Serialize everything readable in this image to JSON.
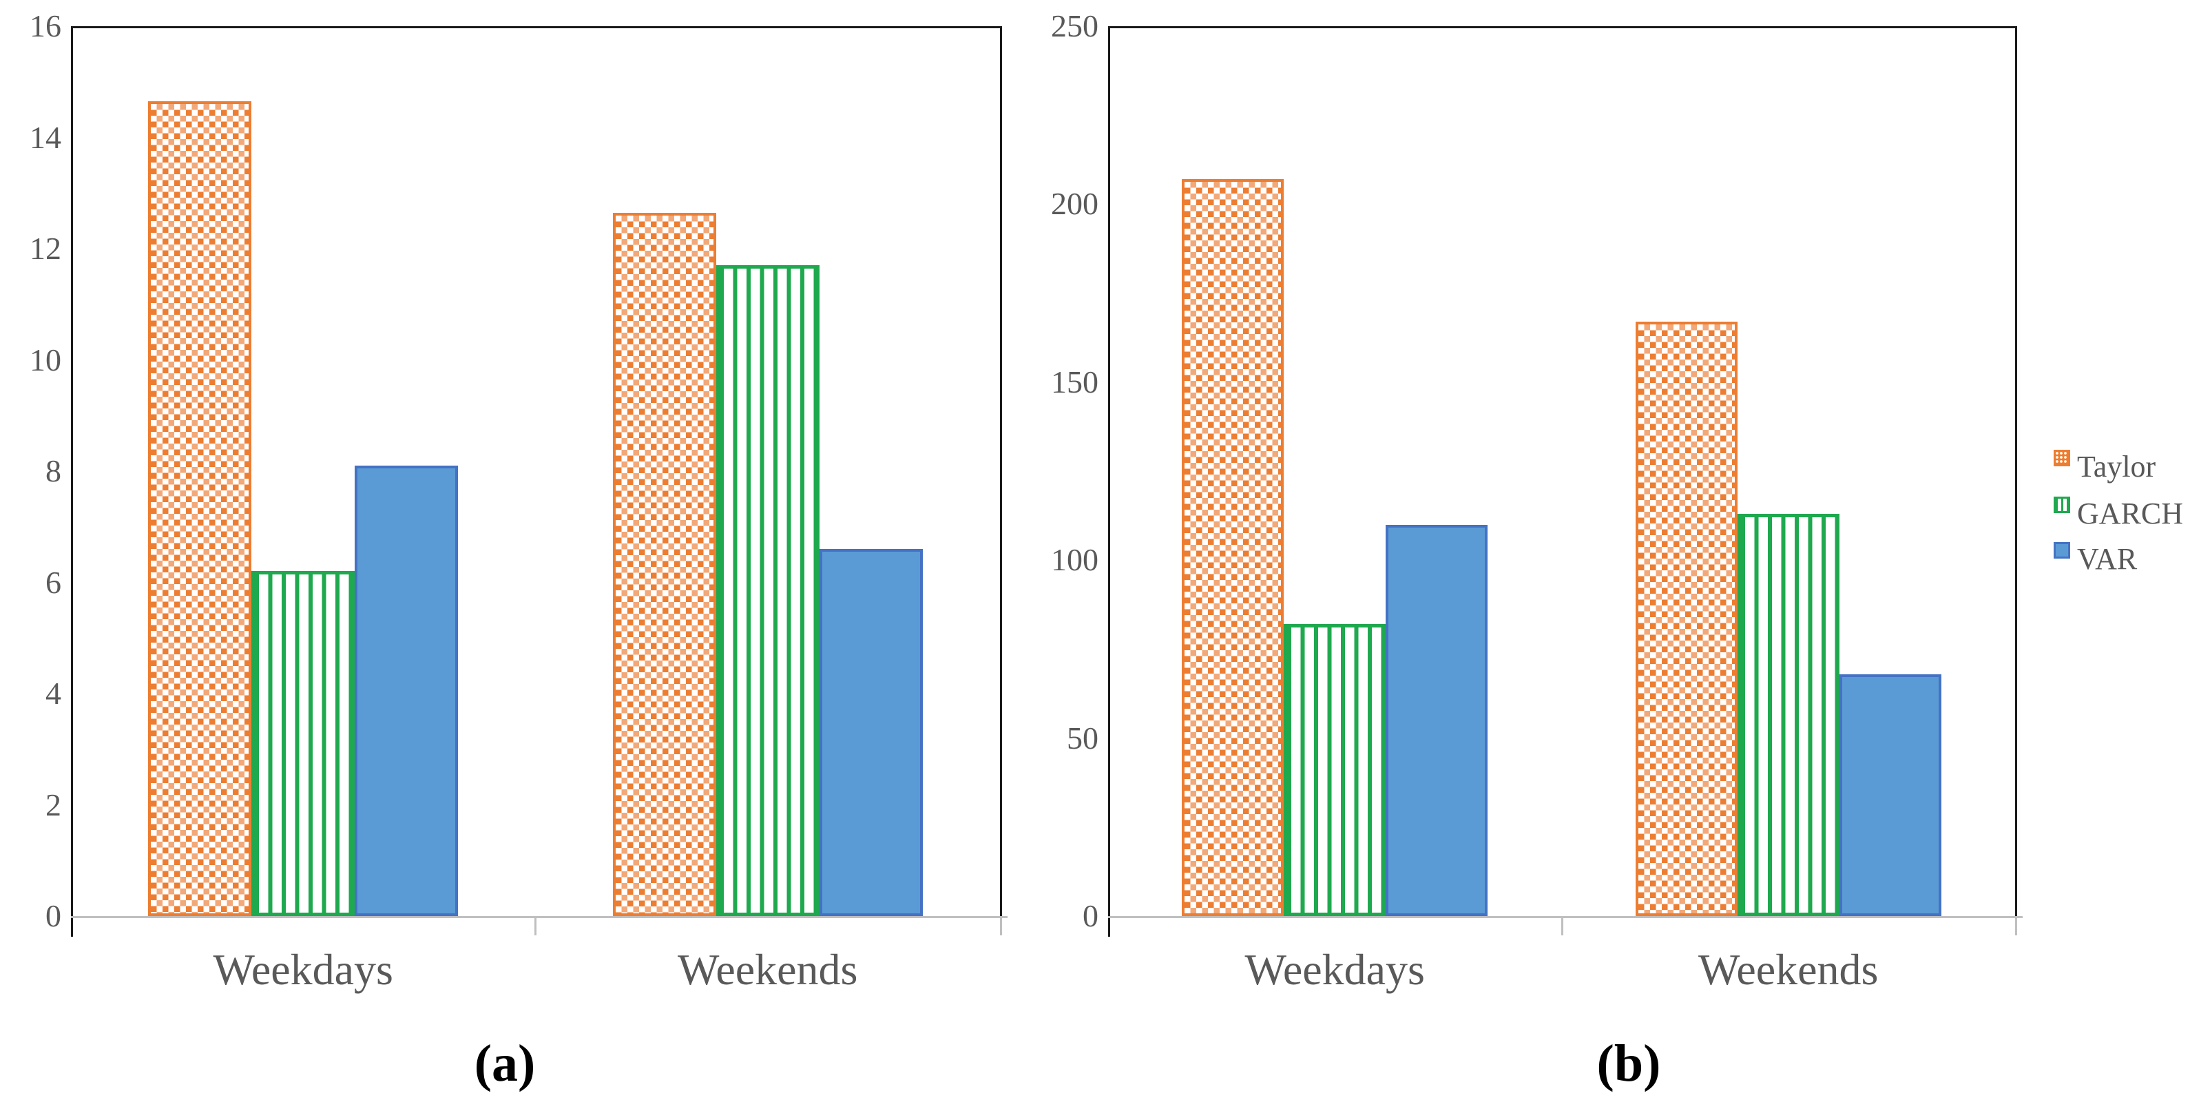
{
  "figure": {
    "background": "#FFFFFF",
    "description": "Two grouped bar charts (a) and (b) comparing Taylor, GARCH and VAR models for Weekdays and Weekends"
  },
  "legend": {
    "position": "right",
    "items": [
      {
        "label": "Taylor",
        "swatch": "orange-dotted-square-icon",
        "color": "#ED7D31"
      },
      {
        "label": "GARCH",
        "swatch": "green-vertical-striped-square-icon",
        "color": "#1FA94F"
      },
      {
        "label": "VAR",
        "swatch": "blue-solid-square-icon",
        "color": "#5B9BD5"
      }
    ]
  },
  "chart_data": [
    {
      "id": "a",
      "type": "bar",
      "caption": "(a)",
      "title": "",
      "xlabel": "",
      "ylabel": "",
      "categories": [
        "Weekdays",
        "Weekends"
      ],
      "series": [
        {
          "name": "Taylor",
          "pattern": "orange-dotted",
          "values": [
            14.65,
            12.65
          ]
        },
        {
          "name": "GARCH",
          "pattern": "green-vertical-striped",
          "values": [
            6.2,
            11.7
          ]
        },
        {
          "name": "VAR",
          "pattern": "blue-solid",
          "values": [
            8.1,
            6.6
          ]
        }
      ],
      "ylim": [
        0,
        16
      ],
      "yticks": [
        0,
        2,
        4,
        6,
        8,
        10,
        12,
        14,
        16
      ],
      "grid": false
    },
    {
      "id": "b",
      "type": "bar",
      "caption": "(b)",
      "title": "",
      "xlabel": "",
      "ylabel": "",
      "categories": [
        "Weekdays",
        "Weekends"
      ],
      "series": [
        {
          "name": "Taylor",
          "pattern": "orange-dotted",
          "values": [
            207,
            167
          ]
        },
        {
          "name": "GARCH",
          "pattern": "green-vertical-striped",
          "values": [
            82,
            113
          ]
        },
        {
          "name": "VAR",
          "pattern": "blue-solid",
          "values": [
            110,
            68
          ]
        }
      ],
      "ylim": [
        0,
        250
      ],
      "yticks": [
        0,
        50,
        100,
        150,
        200,
        250
      ],
      "grid": false
    }
  ],
  "styles": {
    "tick_label_color": "#595959",
    "category_label_color": "#595959",
    "caption_color": "#000000",
    "axis_color": "#1A1A1A",
    "baseline_color": "#BFBFBF",
    "taylor_color": "#ED7D31",
    "taylor_color_light": "#F2A878",
    "garch_color": "#1FA94F",
    "var_fill": "#5B9BD5",
    "var_border": "#4472C4"
  }
}
